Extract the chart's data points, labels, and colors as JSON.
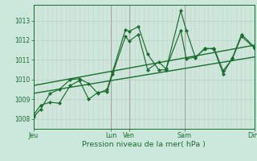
{
  "background_color": "#cce8dc",
  "grid_color_h": "#b8d8cc",
  "grid_color_v_minor": "#ddc8c8",
  "grid_color_v_major": "#aaaaaa",
  "line_color": "#1a6e2e",
  "xlabel": "Pression niveau de la mer( hPa )",
  "ylim": [
    1007.5,
    1013.8
  ],
  "yticks": [
    1008,
    1009,
    1010,
    1011,
    1012,
    1013
  ],
  "xtick_labels": [
    "Jeu",
    "Lun",
    "Ven",
    "Sam",
    "Dim"
  ],
  "xtick_positions": [
    0,
    4.2,
    5.2,
    8.2,
    12.0
  ],
  "major_vlines": [
    0,
    4.2,
    5.2,
    8.2,
    12.0
  ],
  "series1_x": [
    0.0,
    0.4,
    0.9,
    1.4,
    2.0,
    2.5,
    3.0,
    3.5,
    4.0,
    4.3,
    5.0,
    5.2,
    5.7,
    6.2,
    6.8,
    7.2,
    8.0,
    8.3,
    8.8,
    9.3,
    9.8,
    10.3,
    10.8,
    11.3,
    12.0
  ],
  "series1_y": [
    1008.1,
    1008.5,
    1009.3,
    1009.5,
    1010.0,
    1010.05,
    1009.8,
    1009.3,
    1009.5,
    1010.4,
    1012.55,
    1012.45,
    1012.7,
    1011.3,
    1010.5,
    1010.5,
    1013.5,
    1012.5,
    1011.1,
    1011.6,
    1011.55,
    1010.3,
    1011.1,
    1012.3,
    1011.65
  ],
  "series2_x": [
    0.0,
    0.4,
    0.9,
    1.4,
    2.0,
    2.5,
    3.0,
    3.5,
    4.0,
    4.3,
    5.0,
    5.2,
    5.7,
    6.2,
    6.8,
    7.2,
    8.0,
    8.3,
    8.8,
    9.3,
    9.8,
    10.3,
    10.8,
    11.3,
    12.0
  ],
  "series2_y": [
    1008.2,
    1008.7,
    1008.85,
    1008.8,
    1009.7,
    1009.95,
    1009.0,
    1009.35,
    1009.4,
    1010.3,
    1012.2,
    1011.95,
    1012.3,
    1010.5,
    1010.9,
    1010.55,
    1012.5,
    1011.05,
    1011.15,
    1011.55,
    1011.6,
    1010.45,
    1011.05,
    1012.2,
    1011.6
  ],
  "trend1_x": [
    0,
    12
  ],
  "trend1_y": [
    1009.3,
    1011.15
  ],
  "trend2_x": [
    0,
    12
  ],
  "trend2_y": [
    1009.7,
    1011.75
  ],
  "n_minor_vlines": 48,
  "figsize": [
    3.2,
    2.0
  ],
  "dpi": 100
}
